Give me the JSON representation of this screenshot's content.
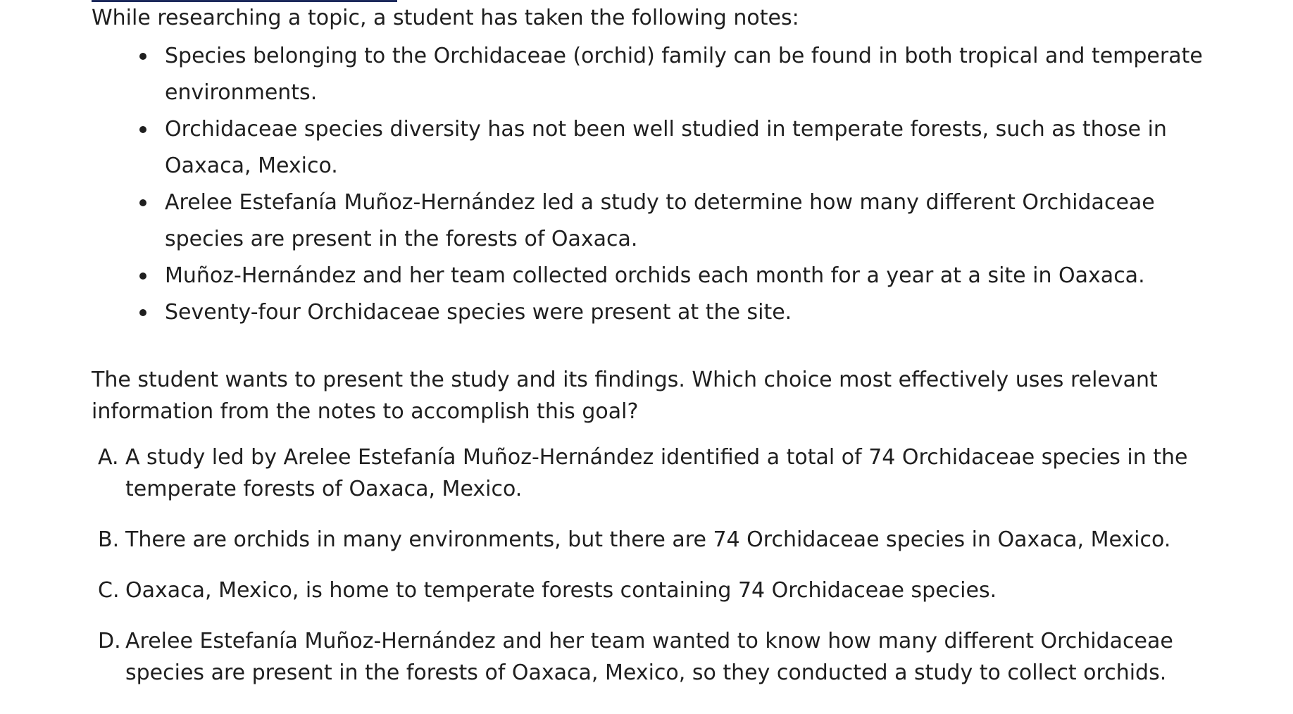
{
  "intro": "While researching a topic, a student has taken the following notes:",
  "notes": [
    "Species belonging to the Orchidaceae (orchid) family can be found in both tropical and temperate environments.",
    "Orchidaceae species diversity has not been well studied in temperate forests, such as those in Oaxaca, Mexico.",
    "Arelee Estefanía Muñoz-Hernández led a study to determine how many different Orchidaceae species are present in the forests of Oaxaca.",
    "Muñoz-Hernández and her team collected orchids each month for a year at a site in Oaxaca.",
    "Seventy-four Orchidaceae species were present at the site."
  ],
  "prompt": "The student wants to present the study and its findings. Which choice most effectively uses relevant information from the notes to accomplish this goal?",
  "choices": [
    {
      "letter": "A.",
      "text": "A study led by Arelee Estefanía Muñoz-Hernández identified a total of 74 Orchidaceae species in the temperate forests of Oaxaca, Mexico."
    },
    {
      "letter": "B.",
      "text": "There are orchids in many environments, but there are 74 Orchidaceae species in Oaxaca, Mexico."
    },
    {
      "letter": "C.",
      "text": "Oaxaca, Mexico, is home to temperate forests containing 74 Orchidaceae species."
    },
    {
      "letter": "D.",
      "text": "Arelee Estefanía Muñoz-Hernández and her team wanted to know how many different Orchidaceae species are present in the forests of Oaxaca, Mexico, so they conducted a study to collect orchids."
    }
  ]
}
